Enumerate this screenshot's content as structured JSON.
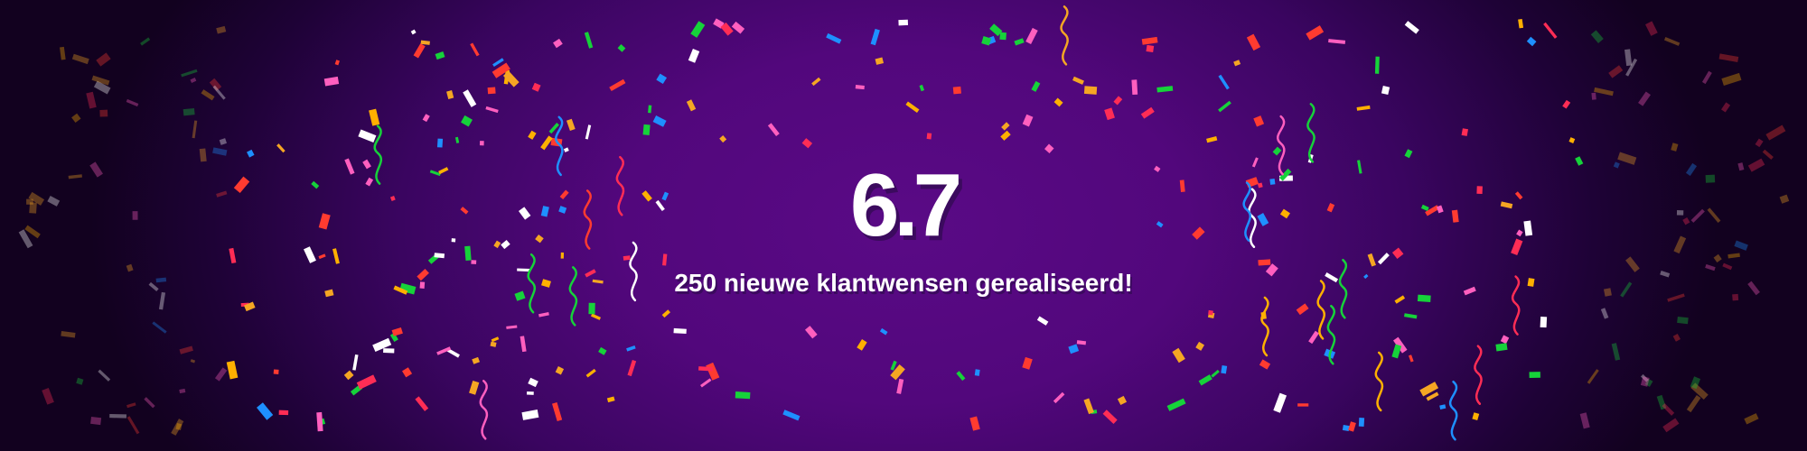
{
  "banner": {
    "version": "6.7",
    "subtitle": "250 nieuwe klantwensen gerealiseerd!"
  },
  "colors": {
    "background": "#52077c",
    "confetti": [
      "#ff2d55",
      "#ffb000",
      "#16d23a",
      "#1e90ff",
      "#ff5fbf",
      "#ffffff",
      "#ff3b30",
      "#f5a623"
    ]
  }
}
